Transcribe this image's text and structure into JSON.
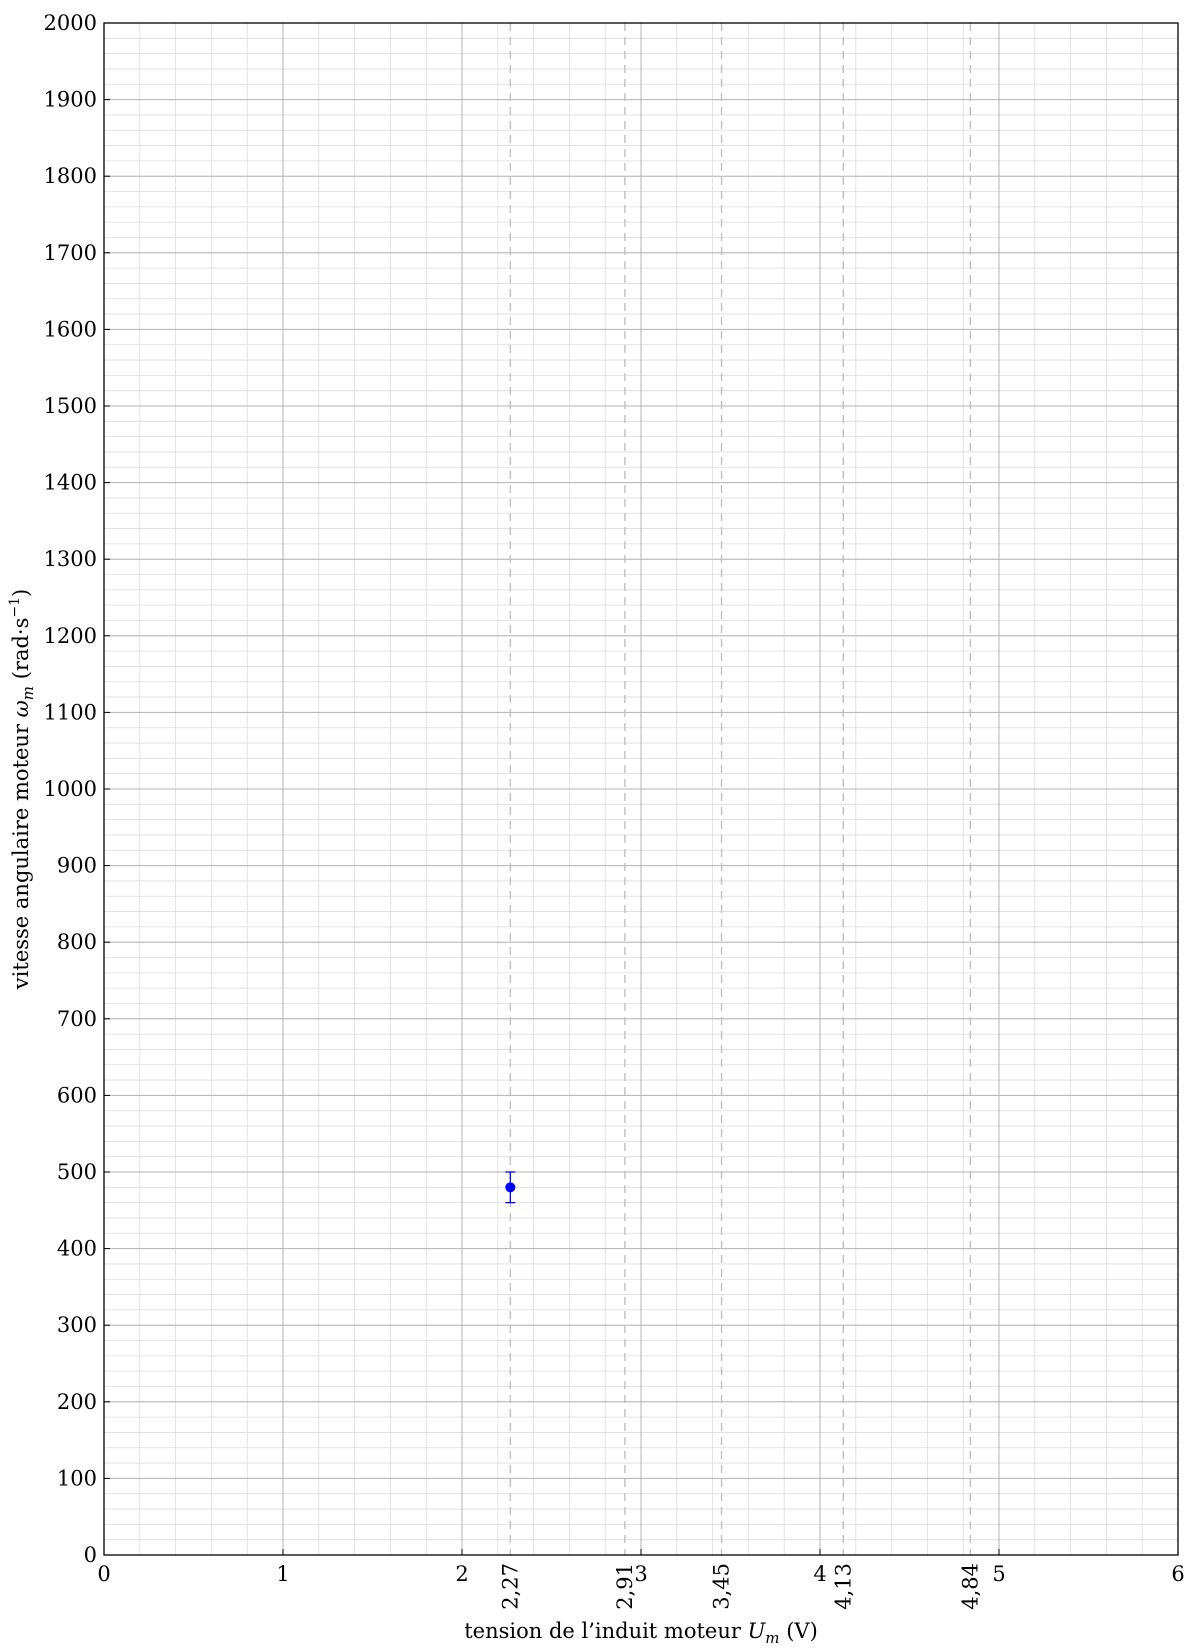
{
  "chart_data": {
    "type": "scatter",
    "title": "",
    "xlabel": {
      "prefix": "tension de l’induit moteur ",
      "symbol": "U",
      "subscript": "m",
      "suffix": " (V)"
    },
    "ylabel": {
      "prefix": "vitesse angulaire moteur ",
      "symbol": "ω",
      "subscript": "m",
      "suffix": " (rad·s",
      "superscript": "−1",
      "close": ")"
    },
    "xlim": [
      0,
      6
    ],
    "ylim": [
      0,
      2000
    ],
    "x_ticks": [
      {
        "value": 0,
        "label": "0"
      },
      {
        "value": 1,
        "label": "1"
      },
      {
        "value": 2,
        "label": "2"
      },
      {
        "value": 3,
        "label": "3"
      },
      {
        "value": 4,
        "label": "4"
      },
      {
        "value": 5,
        "label": "5"
      },
      {
        "value": 6,
        "label": "6"
      }
    ],
    "y_ticks": [
      {
        "value": 0,
        "label": "0"
      },
      {
        "value": 100,
        "label": "100"
      },
      {
        "value": 200,
        "label": "200"
      },
      {
        "value": 300,
        "label": "300"
      },
      {
        "value": 400,
        "label": "400"
      },
      {
        "value": 500,
        "label": "500"
      },
      {
        "value": 600,
        "label": "600"
      },
      {
        "value": 700,
        "label": "700"
      },
      {
        "value": 800,
        "label": "800"
      },
      {
        "value": 900,
        "label": "900"
      },
      {
        "value": 1000,
        "label": "1000"
      },
      {
        "value": 1100,
        "label": "1100"
      },
      {
        "value": 1200,
        "label": "1200"
      },
      {
        "value": 1300,
        "label": "1300"
      },
      {
        "value": 1400,
        "label": "1400"
      },
      {
        "value": 1500,
        "label": "1500"
      },
      {
        "value": 1600,
        "label": "1600"
      },
      {
        "value": 1700,
        "label": "1700"
      },
      {
        "value": 1800,
        "label": "1800"
      },
      {
        "value": 1900,
        "label": "1900"
      },
      {
        "value": 2000,
        "label": "2000"
      }
    ],
    "x_minor_step": 0.2,
    "y_minor_step": 20,
    "grid": true,
    "reference_lines": [
      {
        "value": 2.27,
        "label": "2,27"
      },
      {
        "value": 2.91,
        "label": "2,91"
      },
      {
        "value": 3.45,
        "label": "3,45"
      },
      {
        "value": 4.13,
        "label": "4,13"
      },
      {
        "value": 4.84,
        "label": "4,84"
      }
    ],
    "series": [
      {
        "color": "#0000ff",
        "points": [
          {
            "x": 2.27,
            "y": 480,
            "y_err_low": 460,
            "y_err_high": 500
          }
        ]
      }
    ],
    "colors": {
      "major_grid": "#b3b3b3",
      "minor_grid": "#dcdcdc",
      "reference_line": "#bfbfbf",
      "axis": "#000000",
      "point": "#0000ff"
    }
  }
}
